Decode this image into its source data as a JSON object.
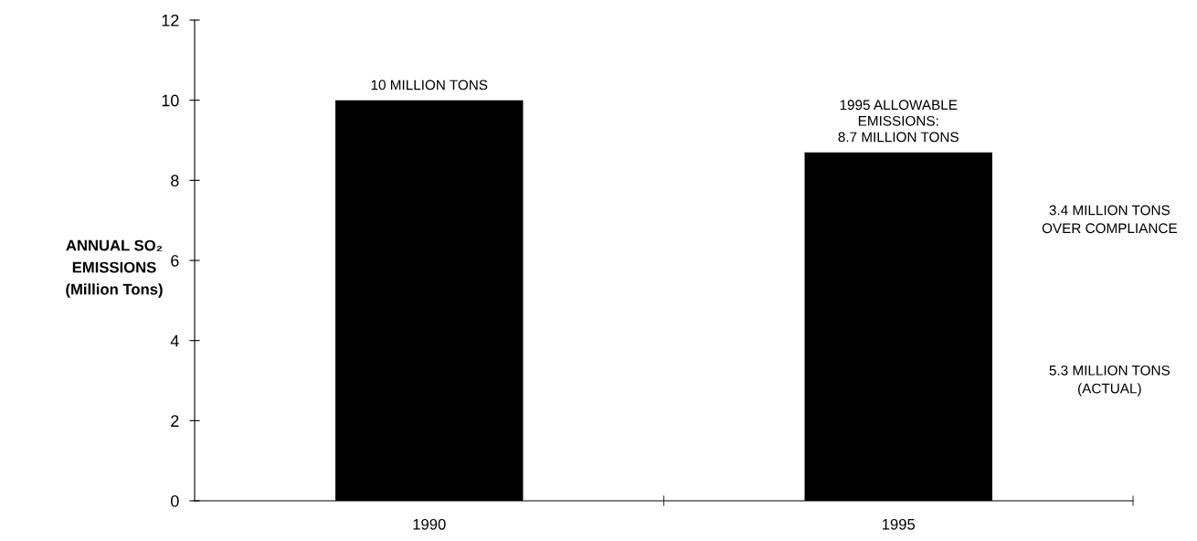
{
  "chart_data": {
    "type": "bar",
    "ylabel": "ANNUAL SO₂\nEMISSIONS\n(Million Tons)",
    "categories": [
      "1990",
      "1995"
    ],
    "values": [
      10,
      8.7
    ],
    "color": "#000000",
    "ylim": [
      0,
      12
    ],
    "yticks": [
      0,
      2,
      4,
      6,
      8,
      10,
      12
    ],
    "grid": false,
    "legend": false,
    "annotations": [
      {
        "text": "10 MILLION TONS",
        "x": "1990",
        "y": 10
      },
      {
        "text": "1995 ALLOWABLE\nEMISSIONS:\n8.7 MILLION TONS",
        "x": "1995",
        "y": 8.7
      },
      "3.4 MILLION TONS\nOVER COMPLIANCE",
      "5.3 MILLION TONS\n(ACTUAL)"
    ]
  }
}
